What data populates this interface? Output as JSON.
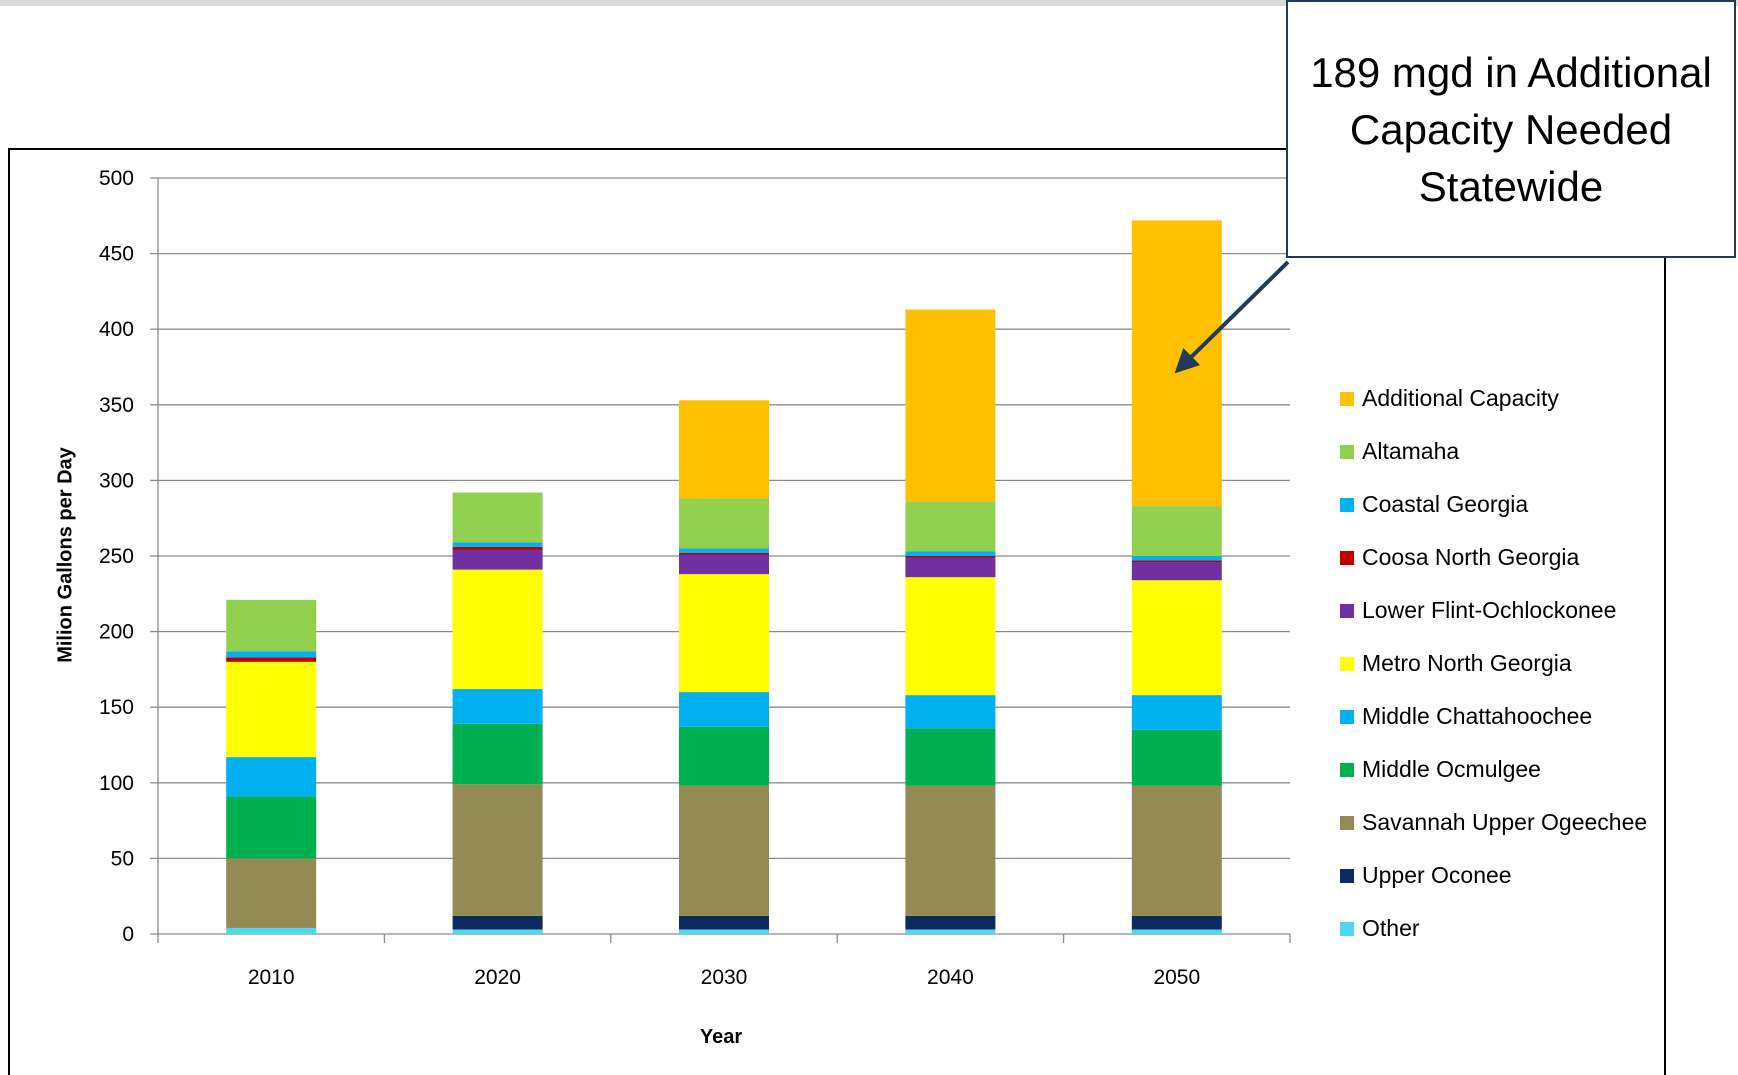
{
  "chart_data": {
    "type": "bar",
    "stacked": true,
    "categories": [
      "2010",
      "2020",
      "2030",
      "2040",
      "2050"
    ],
    "xlabel": "Year",
    "ylabel": "Milion Gallons per Day",
    "ylim": [
      0,
      500
    ],
    "yticks": [
      0,
      50,
      100,
      150,
      200,
      250,
      300,
      350,
      400,
      450,
      500
    ],
    "grid": true,
    "legend_position": "right",
    "series": [
      {
        "name": "Other",
        "color": "#4fd6f0",
        "values": [
          4,
          3,
          3,
          3,
          3
        ]
      },
      {
        "name": "Upper Oconee",
        "color": "#0d2a5e",
        "values": [
          0,
          9,
          9,
          9,
          9
        ]
      },
      {
        "name": "Savannah Upper Ogeechee",
        "color": "#948a54",
        "values": [
          46,
          87,
          86,
          86,
          86
        ]
      },
      {
        "name": "Middle Ocmulgee",
        "color": "#00b050",
        "values": [
          41,
          40,
          39,
          38,
          37
        ]
      },
      {
        "name": "Middle Chattahoochee",
        "color": "#00b0f0",
        "values": [
          26,
          23,
          23,
          22,
          23
        ]
      },
      {
        "name": "Metro North Georgia",
        "color": "#ffff00",
        "values": [
          63,
          79,
          78,
          78,
          76
        ]
      },
      {
        "name": "Lower Flint-Ochlockonee",
        "color": "#7030a0",
        "values": [
          0,
          13,
          13,
          13,
          12
        ]
      },
      {
        "name": "Coosa North Georgia",
        "color": "#c00000",
        "values": [
          3,
          2,
          1,
          1,
          1
        ]
      },
      {
        "name": "Coastal Georgia",
        "color": "#00b0f0",
        "values": [
          4,
          3,
          3,
          3,
          3
        ]
      },
      {
        "name": "Altamaha",
        "color": "#92d050",
        "values": [
          34,
          33,
          33,
          33,
          33
        ]
      },
      {
        "name": "Additional Capacity",
        "color": "#ffc000",
        "values": [
          0,
          0,
          65,
          127,
          189
        ]
      }
    ],
    "legend_order": [
      "Additional Capacity",
      "Altamaha",
      "Coastal Georgia",
      "Coosa North Georgia",
      "Lower Flint-Ochlockonee",
      "Metro North Georgia",
      "Middle Chattahoochee",
      "Middle Ocmulgee",
      "Savannah Upper Ogeechee",
      "Upper Oconee",
      "Other"
    ],
    "annotation": {
      "text": "189 mgd in Additional Capacity Needed Statewide",
      "points_to": {
        "category": "2050",
        "series": "Additional Capacity"
      },
      "arrow_color": "#1f3b57"
    }
  }
}
